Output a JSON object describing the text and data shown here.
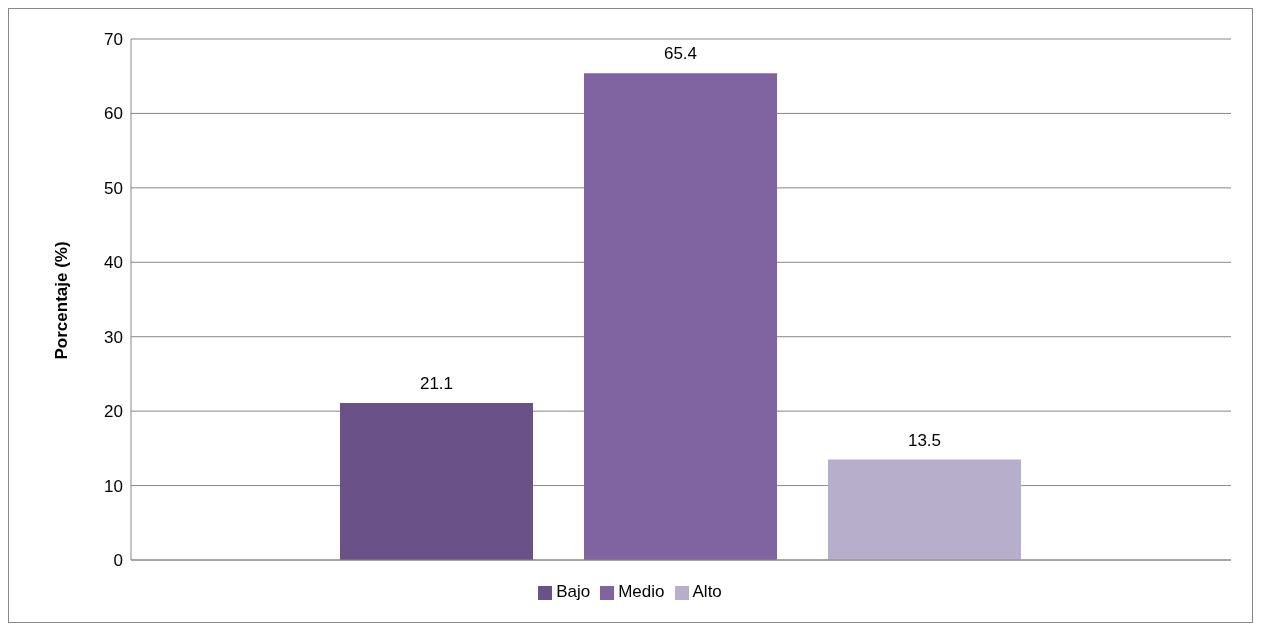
{
  "chart_data": {
    "type": "bar",
    "ylabel": "Porcentaje (%)",
    "categories": [
      null
    ],
    "series": [
      {
        "name": "Bajo",
        "color": "#6a5188",
        "values": [
          21.1
        ]
      },
      {
        "name": "Medio",
        "color": "#8064a2",
        "values": [
          65.4
        ]
      },
      {
        "name": "Alto",
        "color": "#b7aecb",
        "values": [
          13.5
        ]
      }
    ],
    "ylim": [
      0,
      70
    ],
    "yticks": [
      0,
      10,
      20,
      30,
      40,
      50,
      60,
      70
    ],
    "grid": "y",
    "legend": "bottom",
    "data_labels": true
  }
}
